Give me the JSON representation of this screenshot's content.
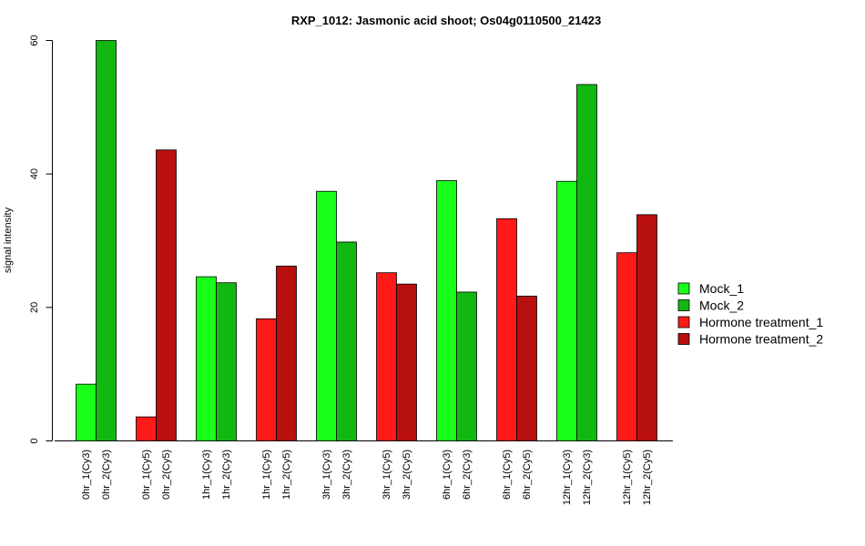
{
  "chart_data": {
    "type": "bar",
    "title": "RXP_1012: Jasmonic acid shoot; Os04g0110500_21423",
    "xlabel": "",
    "ylabel": "signal intensity",
    "ylim": [
      0,
      60
    ],
    "yticks": [
      0,
      20,
      40,
      60
    ],
    "grid": false,
    "legend_position": "right",
    "categories": [
      "0hr_1(Cy3)",
      "0hr_2(Cy3)",
      "0hr_1(Cy5)",
      "0hr_2(Cy5)",
      "1hr_1(Cy3)",
      "1hr_2(Cy3)",
      "1hr_1(Cy5)",
      "1hr_2(Cy5)",
      "3hr_1(Cy3)",
      "3hr_2(Cy3)",
      "3hr_1(Cy5)",
      "3hr_2(Cy5)",
      "6hr_1(Cy3)",
      "6hr_2(Cy3)",
      "6hr_1(Cy5)",
      "6hr_2(Cy5)",
      "12hr_1(Cy3)",
      "12hr_2(Cy3)",
      "12hr_1(Cy5)",
      "12hr_2(Cy5)"
    ],
    "values": [
      8.5,
      60.0,
      3.6,
      43.6,
      24.6,
      23.7,
      18.3,
      26.2,
      37.4,
      29.8,
      25.2,
      23.5,
      39.0,
      22.3,
      33.3,
      21.7,
      38.9,
      53.4,
      28.2,
      33.9
    ],
    "series_index": [
      0,
      1,
      2,
      3,
      0,
      1,
      2,
      3,
      0,
      1,
      2,
      3,
      0,
      1,
      2,
      3,
      0,
      1,
      2,
      3
    ],
    "series": [
      {
        "name": "Mock_1",
        "color": "#1aff1a"
      },
      {
        "name": "Mock_2",
        "color": "#12b812"
      },
      {
        "name": "Hormone treatment_1",
        "color": "#ff1a1a"
      },
      {
        "name": "Hormone treatment_2",
        "color": "#b80f0f"
      }
    ]
  }
}
